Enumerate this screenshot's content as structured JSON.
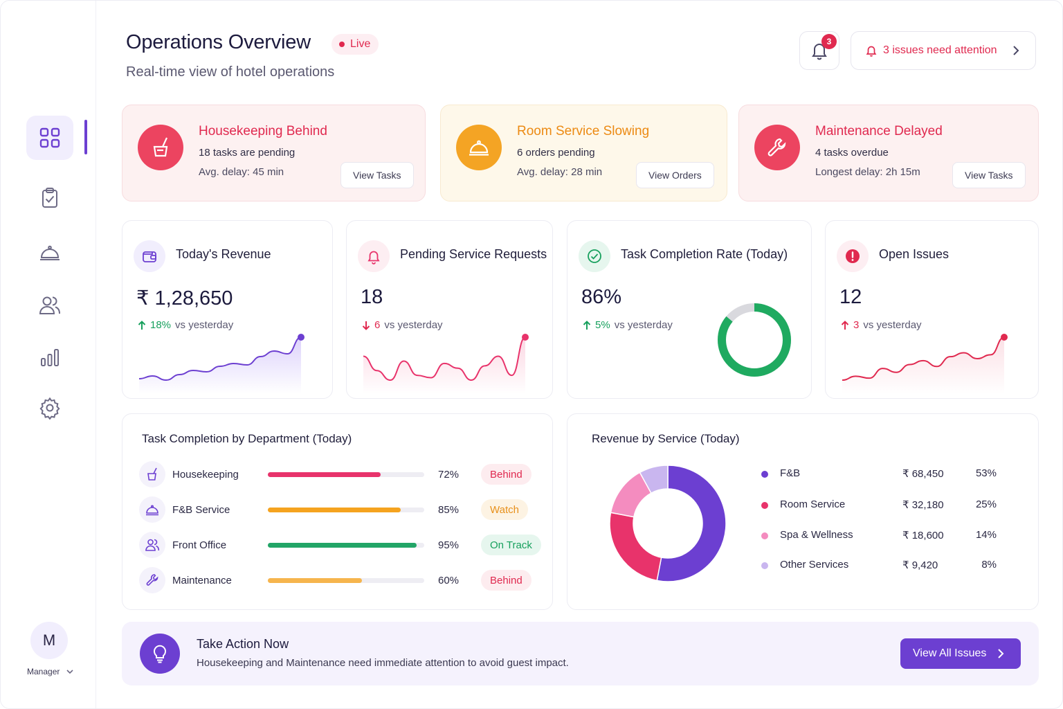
{
  "header": {
    "title": "Operations Overview",
    "live_label": "Live",
    "subtitle": "Real-time view of hotel operations",
    "notification_count": "3",
    "issues_label": "3 issues need attention"
  },
  "sidebar": {
    "items": [
      {
        "icon": "dashboard-grid-icon",
        "active": true
      },
      {
        "icon": "clipboard-check-icon",
        "active": false
      },
      {
        "icon": "service-bell-icon",
        "active": false
      },
      {
        "icon": "users-icon",
        "active": false
      },
      {
        "icon": "bar-chart-icon",
        "active": false
      },
      {
        "icon": "settings-gear-icon",
        "active": false
      }
    ],
    "user_initial": "M",
    "user_role": "Manager"
  },
  "alerts": [
    {
      "title": "Housekeeping Behind",
      "line1": "18 tasks are pending",
      "line2": "Avg. delay: 45 min",
      "button": "View Tasks",
      "icon": "cleaning-bucket-icon",
      "accent": "#e0294f"
    },
    {
      "title": "Room Service Slowing",
      "line1": "6 orders pending",
      "line2": "Avg. delay: 28 min",
      "button": "View Orders",
      "icon": "service-bell-icon",
      "accent": "#f1a02a"
    },
    {
      "title": "Maintenance Delayed",
      "line1": "4 tasks overdue",
      "line2": "Longest delay: 2h 15m",
      "button": "View Tasks",
      "icon": "wrench-icon",
      "accent": "#e0294f"
    }
  ],
  "kpis": [
    {
      "title": "Today's Revenue",
      "value": "₹ 1,28,650",
      "delta": "18%",
      "delta_text": "vs yesterday",
      "direction": "up",
      "delta_color": "#17a05d",
      "icon": "wallet-icon",
      "trend": [
        10,
        12,
        9,
        13,
        16,
        15,
        19,
        21,
        20,
        26,
        30,
        28,
        40
      ]
    },
    {
      "title": "Pending Service Requests",
      "value": "18",
      "delta": "6",
      "delta_text": "vs yesterday",
      "direction": "down",
      "delta_color": "#e0294f",
      "icon": "service-bell-icon",
      "trend": [
        20,
        14,
        10,
        18,
        12,
        11,
        17,
        15,
        10,
        16,
        20,
        12,
        28
      ]
    },
    {
      "title": "Task Completion Rate (Today)",
      "value": "86%",
      "delta": "5%",
      "delta_text": "vs yesterday",
      "direction": "up",
      "delta_color": "#17a05d",
      "icon": "check-circle-icon",
      "completion": 86
    },
    {
      "title": "Open Issues",
      "value": "12",
      "delta": "3",
      "delta_text": "vs yesterday",
      "direction": "up",
      "delta_color": "#e0294f",
      "icon": "alert-circle-icon",
      "trend": [
        8,
        10,
        9,
        14,
        12,
        16,
        18,
        15,
        20,
        22,
        19,
        21,
        30
      ]
    }
  ],
  "departments": {
    "title": "Task Completion by Department (Today)",
    "rows": [
      {
        "name": "Housekeeping",
        "percent": 72,
        "percent_label": "72%",
        "status": "Behind",
        "bar_color": "#e8336b",
        "status_bg": "#fdecef",
        "status_color": "#e0294f",
        "icon": "cleaning-bucket-icon"
      },
      {
        "name": "F&B Service",
        "percent": 85,
        "percent_label": "85%",
        "status": "Watch",
        "bar_color": "#f5a31f",
        "status_bg": "#fdf3e3",
        "status_color": "#e8901a",
        "icon": "service-bell-icon"
      },
      {
        "name": "Front Office",
        "percent": 95,
        "percent_label": "95%",
        "status": "On Track",
        "bar_color": "#22a567",
        "status_bg": "#e6f6ee",
        "status_color": "#17a05d",
        "icon": "users-icon"
      },
      {
        "name": "Maintenance",
        "percent": 60,
        "percent_label": "60%",
        "status": "Behind",
        "bar_color": "#f6b54d",
        "status_bg": "#fdecef",
        "status_color": "#e0294f",
        "icon": "wrench-icon"
      }
    ]
  },
  "revenue": {
    "title": "Revenue by Service (Today)",
    "rows": [
      {
        "name": "F&B",
        "amount": "₹ 68,450",
        "percent_label": "53%",
        "share": 53,
        "color": "#6c3fd1"
      },
      {
        "name": "Room Service",
        "amount": "₹ 32,180",
        "percent_label": "25%",
        "share": 25,
        "color": "#e8336b"
      },
      {
        "name": "Spa & Wellness",
        "amount": "₹ 18,600",
        "percent_label": "14%",
        "share": 14,
        "color": "#f48cbf"
      },
      {
        "name": "Other Services",
        "amount": "₹ 9,420",
        "percent_label": "8%",
        "share": 8,
        "color": "#c9b6ef"
      }
    ]
  },
  "action": {
    "title": "Take Action Now",
    "text": "Housekeeping and Maintenance need immediate attention to avoid guest impact.",
    "button": "View All Issues",
    "icon": "lightbulb-icon"
  }
}
